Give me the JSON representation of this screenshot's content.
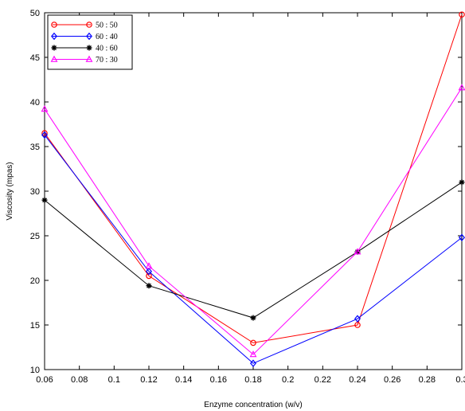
{
  "chart_data": {
    "type": "line",
    "title": "",
    "xlabel": "Enzyme concentration (w/v)",
    "ylabel": "Viscosity (mpas)",
    "xlim": [
      0.06,
      0.3
    ],
    "ylim": [
      10,
      50
    ],
    "xticks": [
      0.06,
      0.08,
      0.1,
      0.12,
      0.14,
      0.16,
      0.18,
      0.2,
      0.22,
      0.24,
      0.26,
      0.28,
      0.3
    ],
    "xtick_labels": [
      "0.06",
      "0.08",
      "0.1",
      "0.12",
      "0.14",
      "0.16",
      "0.18",
      "0.2",
      "0.22",
      "0.24",
      "0.26",
      "0.28",
      "0.3"
    ],
    "yticks": [
      10,
      15,
      20,
      25,
      30,
      35,
      40,
      45,
      50
    ],
    "ytick_labels": [
      "10",
      "15",
      "20",
      "25",
      "30",
      "35",
      "40",
      "45",
      "50"
    ],
    "x": [
      0.06,
      0.12,
      0.18,
      0.24,
      0.3
    ],
    "grid": false,
    "legend_position": "top-left",
    "series": [
      {
        "name": "50 : 50",
        "color": "#ff0000",
        "marker": "circle",
        "values": [
          36.5,
          20.5,
          13.0,
          15.0,
          49.8
        ]
      },
      {
        "name": "60 : 40",
        "color": "#0000ff",
        "marker": "diamond",
        "values": [
          36.3,
          21.0,
          10.7,
          15.7,
          24.8
        ]
      },
      {
        "name": "40 : 60",
        "color": "#000000",
        "marker": "asterisk",
        "values": [
          29.0,
          19.4,
          15.8,
          23.2,
          31.0
        ]
      },
      {
        "name": "70 : 30",
        "color": "#ff00ff",
        "marker": "triangle",
        "values": [
          39.2,
          21.6,
          11.7,
          23.2,
          41.6
        ]
      }
    ]
  }
}
